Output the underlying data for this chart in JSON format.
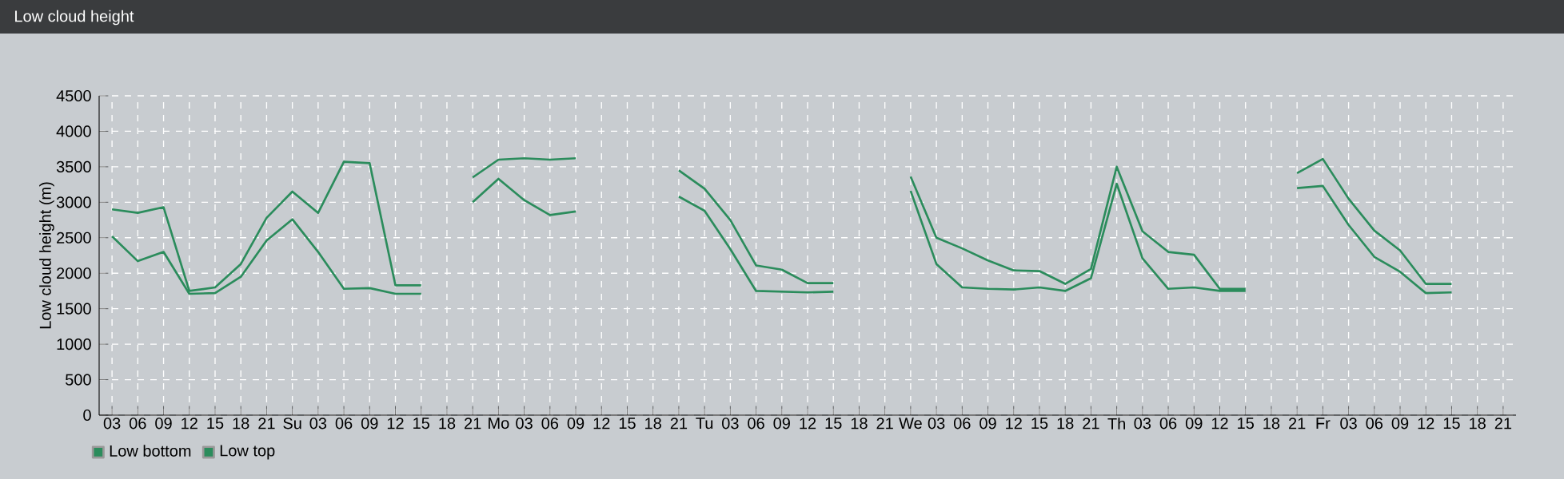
{
  "chart_data": {
    "type": "line",
    "title": "Low cloud height",
    "ylabel": "Low cloud height (m)",
    "categories": [
      "03",
      "06",
      "09",
      "12",
      "15",
      "18",
      "21",
      "Su",
      "03",
      "06",
      "09",
      "12",
      "15",
      "18",
      "21",
      "Mo",
      "03",
      "06",
      "09",
      "12",
      "15",
      "18",
      "21",
      "Tu",
      "03",
      "06",
      "09",
      "12",
      "15",
      "18",
      "21",
      "We",
      "03",
      "06",
      "09",
      "12",
      "15",
      "18",
      "21",
      "Th",
      "03",
      "06",
      "09",
      "12",
      "15",
      "18",
      "21",
      "Fr",
      "03",
      "06",
      "09",
      "12",
      "15",
      "18",
      "21"
    ],
    "ylim": [
      0,
      4500
    ],
    "yticks": [
      0,
      500,
      1000,
      1500,
      2000,
      2500,
      3000,
      3500,
      4000,
      4500
    ],
    "grid": true,
    "legend": "bottom left",
    "marker": "none",
    "line_style": "solid",
    "series": [
      {
        "name": "Low bottom",
        "color": "#2b8c5c",
        "values": [
          2520,
          2170,
          2300,
          1710,
          1720,
          1950,
          2460,
          2760,
          2300,
          1780,
          1790,
          1710,
          1710,
          null,
          3000,
          3330,
          3030,
          2820,
          2870,
          null,
          null,
          null,
          3080,
          2880,
          2340,
          1750,
          1740,
          1730,
          1740,
          null,
          null,
          3160,
          2130,
          1800,
          1780,
          1770,
          1800,
          1750,
          1930,
          3260,
          2210,
          1780,
          1800,
          1750,
          1750,
          null,
          3200,
          3230,
          2680,
          2230,
          2020,
          1720,
          1730,
          null,
          null
        ]
      },
      {
        "name": "Low top",
        "color": "#2b8c5c",
        "values": [
          2900,
          2850,
          2930,
          1750,
          1800,
          2130,
          2780,
          3150,
          2850,
          3570,
          3550,
          1830,
          1830,
          null,
          3350,
          3600,
          3620,
          3600,
          3620,
          null,
          null,
          null,
          3450,
          3190,
          2750,
          2110,
          2050,
          1860,
          1860,
          null,
          null,
          3360,
          2500,
          2350,
          2180,
          2040,
          2030,
          1850,
          2060,
          3500,
          2590,
          2300,
          2260,
          1780,
          1780,
          null,
          3410,
          3610,
          3050,
          2600,
          2320,
          1850,
          1850,
          null,
          null
        ]
      }
    ]
  }
}
